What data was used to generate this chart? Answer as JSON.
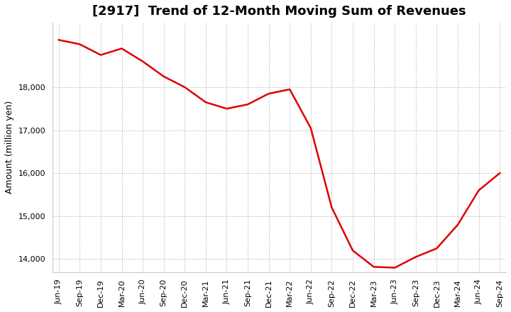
{
  "title": "[2917]  Trend of 12-Month Moving Sum of Revenues",
  "ylabel": "Amount (million yen)",
  "line_color": "#dd0000",
  "background_color": "#ffffff",
  "grid_color": "#aaaaaa",
  "x_labels": [
    "Jun-19",
    "Sep-19",
    "Dec-19",
    "Mar-20",
    "Jun-20",
    "Sep-20",
    "Dec-20",
    "Mar-21",
    "Jun-21",
    "Sep-21",
    "Dec-21",
    "Mar-22",
    "Jun-22",
    "Sep-22",
    "Dec-22",
    "Mar-23",
    "Jun-23",
    "Sep-23",
    "Dec-23",
    "Mar-24",
    "Jun-24",
    "Sep-24"
  ],
  "values": [
    19100,
    19000,
    18750,
    18900,
    18600,
    18250,
    18000,
    17650,
    17500,
    17600,
    17850,
    17950,
    17050,
    15200,
    14200,
    13820,
    13800,
    14050,
    14250,
    14800,
    15600,
    16000
  ],
  "ylim": [
    13700,
    19500
  ],
  "yticks": [
    14000,
    15000,
    16000,
    17000,
    18000
  ],
  "title_fontsize": 13,
  "ylabel_fontsize": 9,
  "tick_fontsize": 8
}
